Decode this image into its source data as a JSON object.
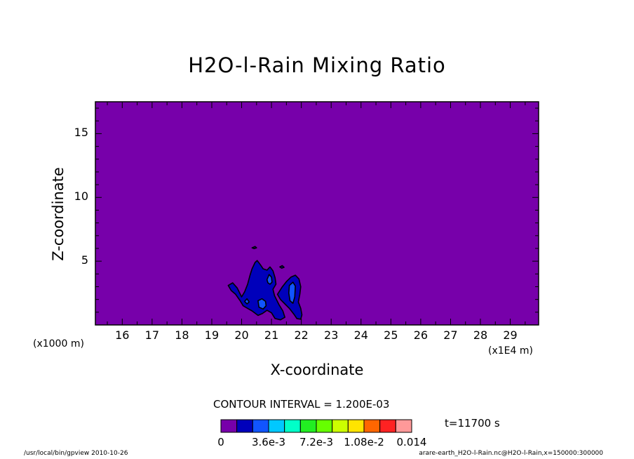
{
  "chart_data": {
    "type": "contour",
    "title": "H2O-l-Rain Mixing Ratio",
    "xlabel": "X-coordinate",
    "ylabel": "Z-coordinate",
    "x_unit_left": "(x1000 m)",
    "x_unit_right": "(x1E4 m)",
    "xlim": [
      15.1,
      29.95
    ],
    "ylim": [
      0,
      17.5
    ],
    "x_ticks": [
      {
        "value": 16,
        "label": "16"
      },
      {
        "value": 17,
        "label": "17"
      },
      {
        "value": 18,
        "label": "18"
      },
      {
        "value": 19,
        "label": "19"
      },
      {
        "value": 20,
        "label": "20"
      },
      {
        "value": 21,
        "label": "21"
      },
      {
        "value": 22,
        "label": "22"
      },
      {
        "value": 23,
        "label": "23"
      },
      {
        "value": 24,
        "label": "24"
      },
      {
        "value": 25,
        "label": "25"
      },
      {
        "value": 26,
        "label": "26"
      },
      {
        "value": 27,
        "label": "27"
      },
      {
        "value": 28,
        "label": "28"
      },
      {
        "value": 29,
        "label": "29"
      }
    ],
    "y_ticks": [
      {
        "value": 5,
        "label": "5"
      },
      {
        "value": 10,
        "label": "10"
      },
      {
        "value": 15,
        "label": "15"
      }
    ],
    "contour_interval_text": "CONTOUR INTERVAL = 1.200E-03",
    "time_text": "t=11700 s",
    "background_color": "#7700aa",
    "colorbar": {
      "colors": [
        "#7700aa",
        "#0000bb",
        "#1155ff",
        "#00c8ff",
        "#00ffc8",
        "#22ee22",
        "#66ff00",
        "#ccff00",
        "#ffe400",
        "#ff6600",
        "#ff2222",
        "#ff9999"
      ],
      "labels": [
        "0",
        "3.6e-3",
        "7.2e-3",
        "1.08e-2",
        "0.014"
      ]
    },
    "regions": [
      {
        "level": 1,
        "color": "#0000bb",
        "points": [
          [
            19.55,
            3.1
          ],
          [
            19.7,
            3.3
          ],
          [
            19.85,
            2.9
          ],
          [
            20.0,
            2.2
          ],
          [
            20.1,
            2.6
          ],
          [
            20.2,
            3.2
          ],
          [
            20.28,
            3.9
          ],
          [
            20.35,
            4.4
          ],
          [
            20.45,
            4.9
          ],
          [
            20.52,
            5.05
          ],
          [
            20.62,
            4.75
          ],
          [
            20.72,
            4.4
          ],
          [
            20.85,
            4.3
          ],
          [
            20.95,
            4.55
          ],
          [
            21.05,
            4.25
          ],
          [
            21.12,
            3.7
          ],
          [
            21.15,
            3.2
          ],
          [
            21.05,
            2.8
          ],
          [
            21.1,
            2.3
          ],
          [
            21.25,
            1.6
          ],
          [
            21.38,
            1.1
          ],
          [
            21.45,
            0.6
          ],
          [
            21.3,
            0.4
          ],
          [
            21.12,
            0.5
          ],
          [
            21.0,
            0.95
          ],
          [
            20.85,
            1.15
          ],
          [
            20.7,
            0.9
          ],
          [
            20.55,
            0.75
          ],
          [
            20.35,
            1.1
          ],
          [
            20.2,
            1.3
          ],
          [
            20.05,
            1.5
          ],
          [
            19.95,
            1.9
          ],
          [
            19.8,
            2.4
          ],
          [
            19.65,
            2.7
          ]
        ]
      },
      {
        "level": 1,
        "color": "#0000bb",
        "points": [
          [
            21.2,
            2.4
          ],
          [
            21.35,
            2.95
          ],
          [
            21.5,
            3.4
          ],
          [
            21.65,
            3.75
          ],
          [
            21.8,
            3.9
          ],
          [
            21.92,
            3.6
          ],
          [
            21.98,
            3.0
          ],
          [
            21.95,
            2.4
          ],
          [
            21.9,
            1.8
          ],
          [
            21.98,
            1.3
          ],
          [
            22.02,
            0.8
          ],
          [
            21.98,
            0.45
          ],
          [
            21.85,
            0.5
          ],
          [
            21.75,
            0.85
          ],
          [
            21.6,
            1.3
          ],
          [
            21.45,
            1.65
          ],
          [
            21.3,
            2.0
          ]
        ]
      },
      {
        "level": 1,
        "color": "#0000bb",
        "points": [
          [
            20.35,
            6.05
          ],
          [
            20.45,
            6.15
          ],
          [
            20.5,
            6.05
          ],
          [
            20.42,
            5.98
          ]
        ]
      },
      {
        "level": 1,
        "color": "#0000bb",
        "points": [
          [
            21.28,
            4.55
          ],
          [
            21.36,
            4.65
          ],
          [
            21.42,
            4.52
          ],
          [
            21.34,
            4.45
          ]
        ]
      },
      {
        "level": 2,
        "color": "#1155ff",
        "points": [
          [
            20.55,
            1.9
          ],
          [
            20.68,
            2.05
          ],
          [
            20.8,
            1.85
          ],
          [
            20.82,
            1.5
          ],
          [
            20.72,
            1.25
          ],
          [
            20.58,
            1.4
          ]
        ]
      },
      {
        "level": 2,
        "color": "#1155ff",
        "points": [
          [
            20.85,
            3.55
          ],
          [
            20.92,
            3.95
          ],
          [
            21.0,
            3.75
          ],
          [
            21.02,
            3.35
          ],
          [
            20.95,
            3.2
          ],
          [
            20.88,
            3.3
          ]
        ]
      },
      {
        "level": 2,
        "color": "#1155ff",
        "points": [
          [
            21.6,
            3.1
          ],
          [
            21.72,
            3.35
          ],
          [
            21.8,
            3.05
          ],
          [
            21.78,
            2.2
          ],
          [
            21.72,
            1.7
          ],
          [
            21.62,
            1.9
          ],
          [
            21.58,
            2.5
          ]
        ]
      },
      {
        "level": 2,
        "color": "#1155ff",
        "points": [
          [
            20.1,
            1.85
          ],
          [
            20.18,
            2.05
          ],
          [
            20.25,
            1.8
          ],
          [
            20.18,
            1.65
          ]
        ]
      }
    ]
  },
  "footer": {
    "left": "/usr/local/bin/gpview  2010-10-26",
    "right": "arare-earth_H2O-l-Rain.nc@H2O-l-Rain,x=150000:300000"
  }
}
